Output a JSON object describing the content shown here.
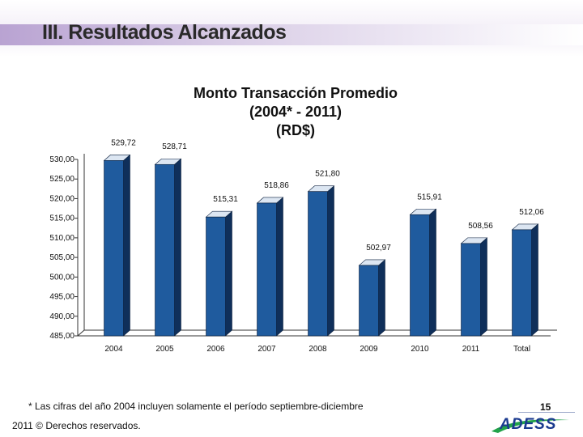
{
  "slide": {
    "title": "III. Resultados  Alcanzados",
    "footnote": "* Las cifras del año 2004 incluyen solamente el período septiembre-diciembre",
    "copyright": "2011 © Derechos reservados.",
    "page_number": "15",
    "logo_text": "ADESS"
  },
  "chart_data": {
    "type": "bar",
    "title_lines": [
      "Monto Transacción Promedio",
      "(2004* - 2011)",
      "(RD$)"
    ],
    "categories": [
      "2004",
      "2005",
      "2006",
      "2007",
      "2008",
      "2009",
      "2010",
      "2011",
      "Total"
    ],
    "values": [
      529.72,
      528.71,
      515.31,
      518.86,
      521.8,
      502.97,
      515.91,
      508.56,
      512.06
    ],
    "value_labels": [
      "529,72",
      "528,71",
      "515,31",
      "518,86",
      "521,80",
      "502,97",
      "515,91",
      "508,56",
      "512,06"
    ],
    "ylim": [
      485,
      530
    ],
    "yticks": [
      "485,00",
      "490,00",
      "495,00",
      "500,00",
      "505,00",
      "510,00",
      "515,00",
      "520,00",
      "525,00",
      "530,00"
    ],
    "bar_color": "#1f5b9e",
    "bar_side_color": "#0f2f5a",
    "bar_top_color": "#dce6f2",
    "grid": false,
    "legend": "none"
  }
}
